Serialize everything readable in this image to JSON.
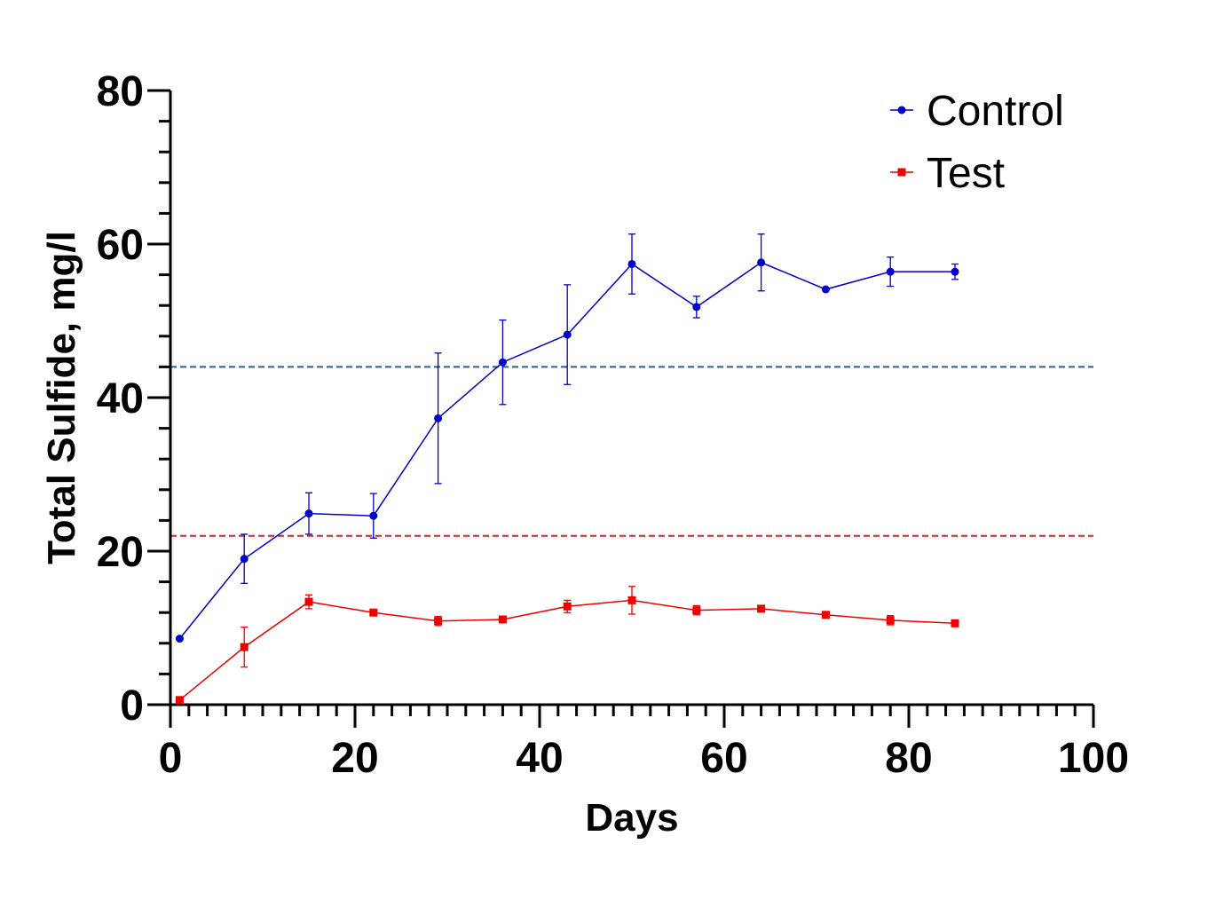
{
  "chart_data": {
    "type": "line",
    "xlabel": "Days",
    "ylabel": "Total  Sulfide, mg/l",
    "xlim": [
      0,
      100
    ],
    "ylim": [
      0,
      80
    ],
    "x_ticks": [
      "0",
      "20",
      "40",
      "60",
      "80",
      "100"
    ],
    "y_ticks": [
      "0",
      "20",
      "40",
      "60",
      "80"
    ],
    "grid": false,
    "legend_position": "top-right",
    "series": [
      {
        "name": "Control",
        "color": "#0000c8",
        "marker": "circle",
        "points": [
          {
            "x": 1,
            "y": 8.6,
            "err": 0
          },
          {
            "x": 8,
            "y": 19.0,
            "err": 3.2
          },
          {
            "x": 15,
            "y": 24.9,
            "err": 2.7
          },
          {
            "x": 22,
            "y": 24.6,
            "err": 2.9
          },
          {
            "x": 29,
            "y": 37.3,
            "err": 8.5
          },
          {
            "x": 36,
            "y": 44.6,
            "err": 5.5
          },
          {
            "x": 43,
            "y": 48.2,
            "err": 6.5
          },
          {
            "x": 50,
            "y": 57.4,
            "err": 3.9
          },
          {
            "x": 57,
            "y": 51.8,
            "err": 1.4
          },
          {
            "x": 64,
            "y": 57.6,
            "err": 3.7
          },
          {
            "x": 71,
            "y": 54.1,
            "err": 0
          },
          {
            "x": 78,
            "y": 56.4,
            "err": 1.9
          },
          {
            "x": 85,
            "y": 56.4,
            "err": 1.0
          }
        ]
      },
      {
        "name": "Test",
        "color": "#ee0000",
        "marker": "square",
        "points": [
          {
            "x": 1,
            "y": 0.6,
            "err": 0
          },
          {
            "x": 8,
            "y": 7.5,
            "err": 2.6
          },
          {
            "x": 15,
            "y": 13.4,
            "err": 0.9
          },
          {
            "x": 22,
            "y": 12.0,
            "err": 0
          },
          {
            "x": 29,
            "y": 10.9,
            "err": 0.6
          },
          {
            "x": 36,
            "y": 11.1,
            "err": 0
          },
          {
            "x": 43,
            "y": 12.8,
            "err": 0.8
          },
          {
            "x": 50,
            "y": 13.6,
            "err": 1.8
          },
          {
            "x": 57,
            "y": 12.3,
            "err": 0.6
          },
          {
            "x": 64,
            "y": 12.5,
            "err": 0
          },
          {
            "x": 71,
            "y": 11.7,
            "err": 0
          },
          {
            "x": 78,
            "y": 11.0,
            "err": 0.6
          },
          {
            "x": 85,
            "y": 10.6,
            "err": 0
          }
        ]
      }
    ],
    "reference_lines": [
      {
        "y": 44,
        "color": "#2a5d8f",
        "style": "dashed"
      },
      {
        "y": 22,
        "color": "#d62728",
        "style": "dashed"
      }
    ]
  }
}
